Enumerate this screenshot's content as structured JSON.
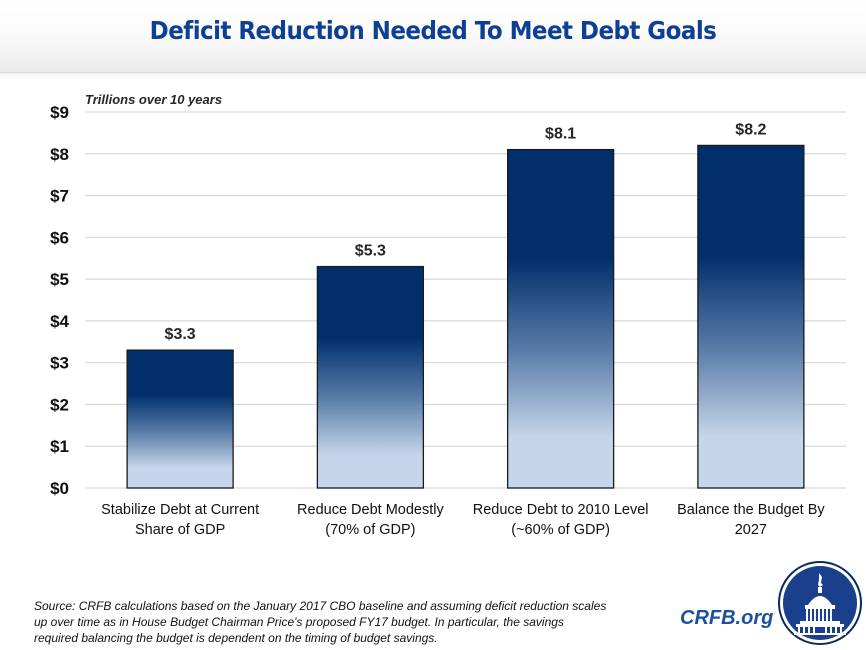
{
  "header": {
    "title": "Deficit Reduction Needed To Meet Debt Goals"
  },
  "colors": {
    "title": "#0d3f95",
    "bar_top": "#002f6c",
    "bar_bottom": "#c5d5ea",
    "bar_outline": "#1a1a1a",
    "gridline": "#d9d9d9",
    "brand": "#1c4fa0"
  },
  "chart_data": {
    "type": "bar",
    "title": "Deficit Reduction Needed To Meet Debt Goals",
    "subtitle": "Trillions over 10 years",
    "xlabel": "",
    "ylabel": "",
    "categories": [
      "Stabilize Debt at Current Share of GDP",
      "Reduce Debt Modestly (70% of GDP)",
      "Reduce Debt to 2010 Level (~60% of GDP)",
      "Balance the Budget By 2027"
    ],
    "category_lines": [
      [
        "Stabilize Debt at Current",
        "Share of GDP"
      ],
      [
        "Reduce Debt Modestly",
        "(70% of GDP)"
      ],
      [
        "Reduce Debt to 2010 Level",
        "(~60% of GDP)"
      ],
      [
        "Balance the Budget By",
        "2027"
      ]
    ],
    "values": [
      3.3,
      5.3,
      8.1,
      8.2
    ],
    "data_labels": [
      "$3.3",
      "$5.3",
      "$8.1",
      "$8.2"
    ],
    "ylim": [
      0,
      9
    ],
    "yticks": [
      0,
      1,
      2,
      3,
      4,
      5,
      6,
      7,
      8,
      9
    ],
    "ytick_labels": [
      "$0",
      "$1",
      "$2",
      "$3",
      "$4",
      "$5",
      "$6",
      "$7",
      "$8",
      "$9"
    ],
    "grid": true,
    "legend": "none"
  },
  "footer": {
    "source_lines": [
      "Source: CRFB calculations based on the January 2017 CBO baseline and assuming deficit reduction scales",
      "up over time as in House Budget Chairman Price's proposed FY17 budget. In particular, the savings",
      "required balancing the budget is dependent on the timing of budget savings."
    ],
    "brand": "CRFB.org",
    "logo_icon": "capitol-dome-icon"
  }
}
